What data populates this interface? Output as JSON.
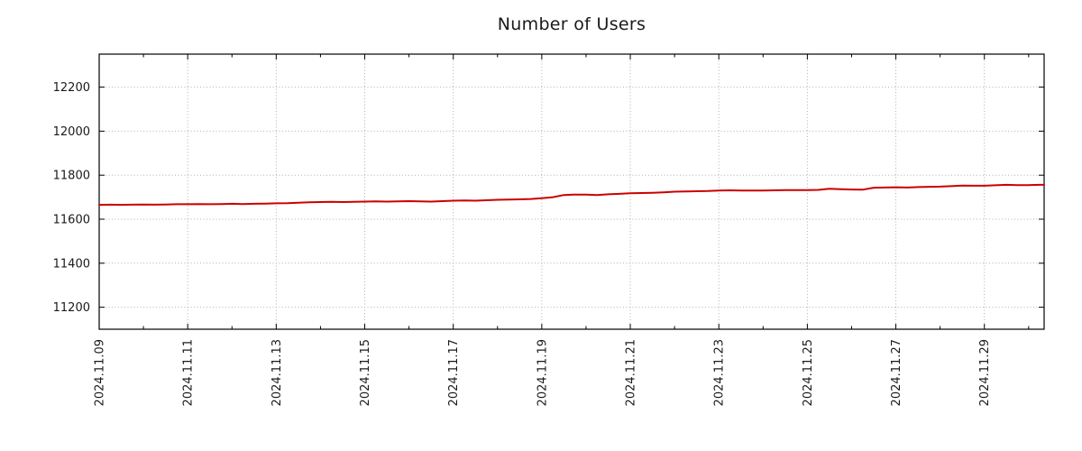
{
  "page": {
    "title": "Number of Users"
  },
  "chart_data": {
    "type": "line",
    "title": "Number of Users",
    "xlabel": "",
    "ylabel": "",
    "x_unit": "days since first tick (2024.11.09)",
    "xlim": [
      0,
      21.35
    ],
    "ylim": [
      11100,
      12350
    ],
    "y_ticks": [
      11200,
      11400,
      11600,
      11800,
      12000,
      12200
    ],
    "x_major_ticks": [
      {
        "t": 0,
        "label": "2024.11.09"
      },
      {
        "t": 2,
        "label": "2024.11.11"
      },
      {
        "t": 4,
        "label": "2024.11.13"
      },
      {
        "t": 6,
        "label": "2024.11.15"
      },
      {
        "t": 8,
        "label": "2024.11.17"
      },
      {
        "t": 10,
        "label": "2024.11.19"
      },
      {
        "t": 12,
        "label": "2024.11.21"
      },
      {
        "t": 14,
        "label": "2024.11.23"
      },
      {
        "t": 16,
        "label": "2024.11.25"
      },
      {
        "t": 18,
        "label": "2024.11.27"
      },
      {
        "t": 20,
        "label": "2024.11.29"
      }
    ],
    "x_minor_ticks": [
      1,
      3,
      5,
      7,
      9,
      11,
      13,
      15,
      17,
      19,
      21
    ],
    "grid": "dotted",
    "legend": "none",
    "series": [
      {
        "name": "users",
        "color": "#cc0000",
        "points": [
          [
            0.0,
            11665
          ],
          [
            0.25,
            11666
          ],
          [
            0.5,
            11665
          ],
          [
            0.75,
            11666
          ],
          [
            1.0,
            11667
          ],
          [
            1.25,
            11666
          ],
          [
            1.5,
            11667
          ],
          [
            1.75,
            11668
          ],
          [
            2.0,
            11668
          ],
          [
            2.25,
            11669
          ],
          [
            2.5,
            11668
          ],
          [
            2.75,
            11669
          ],
          [
            3.0,
            11670
          ],
          [
            3.25,
            11669
          ],
          [
            3.5,
            11670
          ],
          [
            3.75,
            11671
          ],
          [
            4.0,
            11672
          ],
          [
            4.25,
            11673
          ],
          [
            4.5,
            11675
          ],
          [
            4.75,
            11677
          ],
          [
            5.0,
            11678
          ],
          [
            5.25,
            11679
          ],
          [
            5.5,
            11678
          ],
          [
            5.75,
            11679
          ],
          [
            6.0,
            11680
          ],
          [
            6.25,
            11681
          ],
          [
            6.5,
            11680
          ],
          [
            6.75,
            11681
          ],
          [
            7.0,
            11682
          ],
          [
            7.25,
            11681
          ],
          [
            7.5,
            11680
          ],
          [
            7.75,
            11682
          ],
          [
            8.0,
            11684
          ],
          [
            8.25,
            11685
          ],
          [
            8.5,
            11684
          ],
          [
            8.75,
            11686
          ],
          [
            9.0,
            11688
          ],
          [
            9.25,
            11689
          ],
          [
            9.5,
            11690
          ],
          [
            9.75,
            11692
          ],
          [
            10.0,
            11695
          ],
          [
            10.25,
            11700
          ],
          [
            10.5,
            11710
          ],
          [
            10.75,
            11712
          ],
          [
            11.0,
            11712
          ],
          [
            11.25,
            11710
          ],
          [
            11.5,
            11713
          ],
          [
            11.75,
            11715
          ],
          [
            12.0,
            11718
          ],
          [
            12.25,
            11719
          ],
          [
            12.5,
            11720
          ],
          [
            12.75,
            11722
          ],
          [
            13.0,
            11725
          ],
          [
            13.25,
            11726
          ],
          [
            13.5,
            11727
          ],
          [
            13.75,
            11728
          ],
          [
            14.0,
            11730
          ],
          [
            14.25,
            11731
          ],
          [
            14.5,
            11730
          ],
          [
            14.75,
            11730
          ],
          [
            15.0,
            11730
          ],
          [
            15.25,
            11731
          ],
          [
            15.5,
            11732
          ],
          [
            15.75,
            11732
          ],
          [
            16.0,
            11732
          ],
          [
            16.25,
            11733
          ],
          [
            16.5,
            11738
          ],
          [
            16.75,
            11736
          ],
          [
            17.0,
            11735
          ],
          [
            17.25,
            11734
          ],
          [
            17.5,
            11743
          ],
          [
            17.75,
            11744
          ],
          [
            18.0,
            11745
          ],
          [
            18.25,
            11744
          ],
          [
            18.5,
            11746
          ],
          [
            18.75,
            11747
          ],
          [
            19.0,
            11748
          ],
          [
            19.25,
            11750
          ],
          [
            19.5,
            11753
          ],
          [
            19.75,
            11752
          ],
          [
            20.0,
            11752
          ],
          [
            20.25,
            11754
          ],
          [
            20.5,
            11756
          ],
          [
            20.75,
            11755
          ],
          [
            21.0,
            11755
          ],
          [
            21.25,
            11756
          ],
          [
            21.35,
            11756
          ]
        ]
      }
    ]
  },
  "style": {
    "line_color": "#cc0000",
    "grid_color": "#b0b0b0",
    "frame_color": "#000000",
    "text_color": "#1a1a1a",
    "background": "#ffffff"
  }
}
